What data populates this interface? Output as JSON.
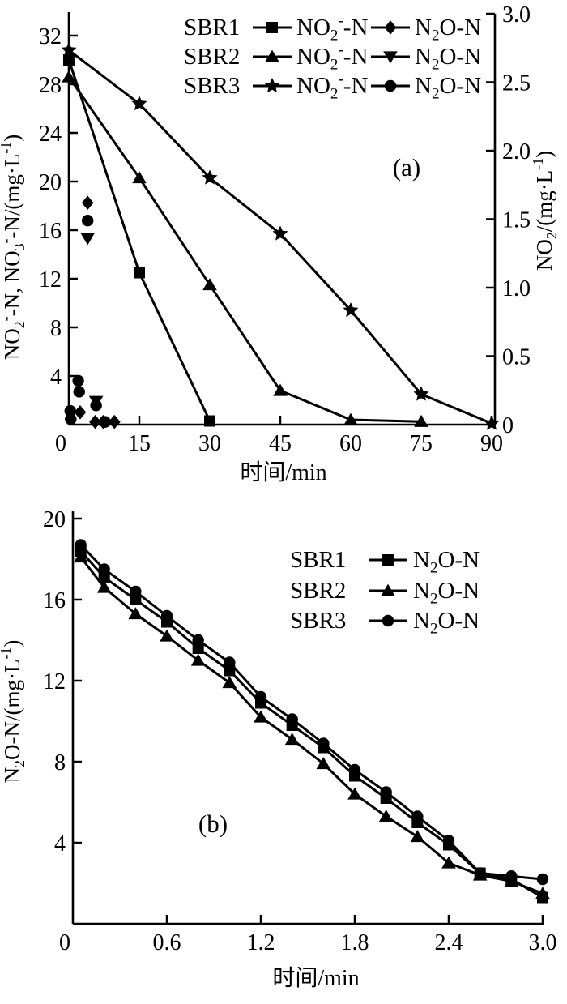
{
  "colors": {
    "ink": "#000000",
    "background": "#ffffff"
  },
  "tokens": {
    "NO2--N": [
      {
        "t": "NO"
      },
      {
        "t": "2",
        "s": "sub"
      },
      {
        "t": "-",
        "s": "sup"
      },
      {
        "t": "-N"
      }
    ],
    "N2O-N": [
      {
        "t": "N"
      },
      {
        "t": "2",
        "s": "sub"
      },
      {
        "t": "O-N"
      }
    ],
    "ylabel_a_left": [
      {
        "t": "NO"
      },
      {
        "t": "2",
        "s": "sub"
      },
      {
        "t": "-",
        "s": "sup"
      },
      {
        "t": "-N, NO"
      },
      {
        "t": "3",
        "s": "sub"
      },
      {
        "t": "-",
        "s": "sup"
      },
      {
        "t": "-N/(mg·L"
      },
      {
        "t": "-1",
        "s": "sup"
      },
      {
        "t": ")"
      }
    ],
    "ylabel_a_right": [
      {
        "t": "NO"
      },
      {
        "t": "2",
        "s": "sub"
      },
      {
        "t": "/(mg·L"
      },
      {
        "t": "-1",
        "s": "sup"
      },
      {
        "t": ")"
      }
    ],
    "ylabel_b": [
      {
        "t": "N"
      },
      {
        "t": "2",
        "s": "sub"
      },
      {
        "t": "O-N/(mg·L"
      },
      {
        "t": "-1",
        "s": "sup"
      },
      {
        "t": ")"
      }
    ]
  },
  "chart_data": [
    {
      "panel_label": "(a)",
      "type": "line",
      "xlabel": "时间/min",
      "xlim": [
        0,
        90
      ],
      "ylim_left": [
        0,
        32
      ],
      "ylim_right": [
        0,
        3.0
      ],
      "x_ticks": [
        {
          "v": 0,
          "label": "0"
        },
        {
          "v": 15,
          "label": "15"
        },
        {
          "v": 30,
          "label": "30"
        },
        {
          "v": 45,
          "label": "45"
        },
        {
          "v": 60,
          "label": "60"
        },
        {
          "v": 75,
          "label": "75"
        },
        {
          "v": 90,
          "label": "90"
        }
      ],
      "y_left_ticks": [
        {
          "v": 4,
          "label": "4"
        },
        {
          "v": 8,
          "label": "8"
        },
        {
          "v": 12,
          "label": "12"
        },
        {
          "v": 16,
          "label": "16"
        },
        {
          "v": 20,
          "label": "20"
        },
        {
          "v": 24,
          "label": "24"
        },
        {
          "v": 28,
          "label": "28"
        },
        {
          "v": 32,
          "label": "32"
        }
      ],
      "y_right_ticks": [
        {
          "v": 0,
          "label": "0"
        },
        {
          "v": 0.5,
          "label": "0.5"
        },
        {
          "v": 1.0,
          "label": "1.0"
        },
        {
          "v": 1.5,
          "label": "1.5"
        },
        {
          "v": 2.0,
          "label": "2.0"
        },
        {
          "v": 2.5,
          "label": "2.5"
        },
        {
          "v": 3.0,
          "label": "3.0"
        }
      ],
      "series": [
        {
          "key": "sbr1-no2n",
          "sbr": "SBR1",
          "species": "NO2--N",
          "marker": "square",
          "axis": "left",
          "line": true,
          "points": [
            [
              0,
              30.0
            ],
            [
              15,
              12.5
            ],
            [
              30,
              0.3
            ]
          ]
        },
        {
          "key": "sbr2-no2n",
          "sbr": "SBR2",
          "species": "NO2--N",
          "marker": "triangle-up",
          "axis": "left",
          "line": true,
          "points": [
            [
              0,
              28.6
            ],
            [
              15,
              20.3
            ],
            [
              30,
              11.5
            ],
            [
              45,
              2.8
            ],
            [
              60,
              0.4
            ],
            [
              75,
              0.25
            ]
          ]
        },
        {
          "key": "sbr3-no2n",
          "sbr": "SBR3",
          "species": "NO2--N",
          "marker": "star",
          "axis": "left",
          "line": true,
          "points": [
            [
              0,
              30.8
            ],
            [
              15,
              26.4
            ],
            [
              30,
              20.3
            ],
            [
              45,
              15.7
            ],
            [
              60,
              9.4
            ],
            [
              75,
              2.5
            ],
            [
              90,
              0.1
            ]
          ]
        },
        {
          "key": "sbr1-n2on",
          "sbr": "SBR1",
          "species": "N2O-N",
          "marker": "diamond",
          "axis": "right",
          "line": false,
          "points": [
            [
              2.4,
              0.09
            ],
            [
              4,
              1.62
            ],
            [
              5.6,
              0.02
            ],
            [
              7.3,
              0.02
            ],
            [
              9.7,
              0.02
            ]
          ]
        },
        {
          "key": "sbr2-n2on",
          "sbr": "SBR2",
          "species": "N2O-N",
          "marker": "triangle-down",
          "axis": "right",
          "line": false,
          "points": [
            [
              4,
              1.36
            ],
            [
              5.8,
              0.17
            ]
          ]
        },
        {
          "key": "sbr3-n2on",
          "sbr": "SBR3",
          "species": "N2O-N",
          "marker": "circle",
          "axis": "right",
          "line": false,
          "points": [
            [
              0.3,
              0.1
            ],
            [
              0.4,
              0.04
            ],
            [
              2.0,
              0.32
            ],
            [
              2.2,
              0.24
            ],
            [
              4,
              1.49
            ],
            [
              5.8,
              0.14
            ],
            [
              7.7,
              0.02
            ]
          ]
        }
      ],
      "legend": {
        "rows": [
          {
            "sbr": "SBR1",
            "entries": [
              {
                "marker": "square",
                "species": "NO2--N"
              },
              {
                "marker": "diamond",
                "species": "N2O-N"
              }
            ]
          },
          {
            "sbr": "SBR2",
            "entries": [
              {
                "marker": "triangle-up",
                "species": "NO2--N"
              },
              {
                "marker": "triangle-down",
                "species": "N2O-N"
              }
            ]
          },
          {
            "sbr": "SBR3",
            "entries": [
              {
                "marker": "star",
                "species": "NO2--N"
              },
              {
                "marker": "circle",
                "species": "N2O-N"
              }
            ]
          }
        ]
      }
    },
    {
      "panel_label": "(b)",
      "type": "line",
      "xlabel": "时间/min",
      "xlim": [
        0,
        3.0
      ],
      "ylim_left": [
        0,
        20
      ],
      "x_ticks": [
        {
          "v": 0,
          "label": "0"
        },
        {
          "v": 0.6,
          "label": "0.6"
        },
        {
          "v": 1.2,
          "label": "1.2"
        },
        {
          "v": 1.8,
          "label": "1.8"
        },
        {
          "v": 2.4,
          "label": "2.4"
        },
        {
          "v": 3.0,
          "label": "3.0"
        }
      ],
      "y_left_ticks": [
        {
          "v": 4,
          "label": "4"
        },
        {
          "v": 8,
          "label": "8"
        },
        {
          "v": 12,
          "label": "12"
        },
        {
          "v": 16,
          "label": "16"
        },
        {
          "v": 20,
          "label": "20"
        }
      ],
      "series": [
        {
          "key": "sbr1-n2on-b",
          "sbr": "SBR1",
          "species": "N2O-N",
          "marker": "square",
          "axis": "left",
          "line": true,
          "points": [
            [
              0.05,
              18.4
            ],
            [
              0.2,
              17.1
            ],
            [
              0.4,
              16.0
            ],
            [
              0.6,
              14.9
            ],
            [
              0.8,
              13.6
            ],
            [
              1.0,
              12.5
            ],
            [
              1.2,
              10.9
            ],
            [
              1.4,
              9.8
            ],
            [
              1.6,
              8.7
            ],
            [
              1.8,
              7.3
            ],
            [
              2.0,
              6.2
            ],
            [
              2.2,
              5.0
            ],
            [
              2.4,
              3.9
            ],
            [
              2.6,
              2.5
            ],
            [
              2.8,
              2.2
            ],
            [
              3.0,
              1.3
            ]
          ]
        },
        {
          "key": "sbr2-n2on-b",
          "sbr": "SBR2",
          "species": "N2O-N",
          "marker": "triangle-up",
          "axis": "left",
          "line": true,
          "points": [
            [
              0.05,
              18.1
            ],
            [
              0.2,
              16.6
            ],
            [
              0.4,
              15.3
            ],
            [
              0.6,
              14.2
            ],
            [
              0.8,
              13.0
            ],
            [
              1.0,
              11.9
            ],
            [
              1.2,
              10.2
            ],
            [
              1.4,
              9.1
            ],
            [
              1.6,
              7.9
            ],
            [
              1.8,
              6.4
            ],
            [
              2.0,
              5.3
            ],
            [
              2.2,
              4.3
            ],
            [
              2.4,
              3.0
            ],
            [
              2.6,
              2.4
            ],
            [
              2.8,
              2.1
            ],
            [
              3.0,
              1.5
            ]
          ]
        },
        {
          "key": "sbr3-n2on-b",
          "sbr": "SBR3",
          "species": "N2O-N",
          "marker": "circle",
          "axis": "left",
          "line": true,
          "points": [
            [
              0.05,
              18.7
            ],
            [
              0.2,
              17.5
            ],
            [
              0.4,
              16.4
            ],
            [
              0.6,
              15.2
            ],
            [
              0.8,
              14.0
            ],
            [
              1.0,
              12.9
            ],
            [
              1.2,
              11.2
            ],
            [
              1.4,
              10.1
            ],
            [
              1.6,
              8.9
            ],
            [
              1.8,
              7.6
            ],
            [
              2.0,
              6.5
            ],
            [
              2.2,
              5.3
            ],
            [
              2.4,
              4.1
            ],
            [
              2.6,
              2.5
            ],
            [
              2.8,
              2.35
            ],
            [
              3.0,
              2.2
            ]
          ]
        }
      ],
      "legend": {
        "rows": [
          {
            "sbr": "SBR1",
            "entries": [
              {
                "marker": "square",
                "species": "N2O-N"
              }
            ]
          },
          {
            "sbr": "SBR2",
            "entries": [
              {
                "marker": "triangle-up",
                "species": "N2O-N"
              }
            ]
          },
          {
            "sbr": "SBR3",
            "entries": [
              {
                "marker": "circle",
                "species": "N2O-N"
              }
            ]
          }
        ]
      }
    }
  ]
}
